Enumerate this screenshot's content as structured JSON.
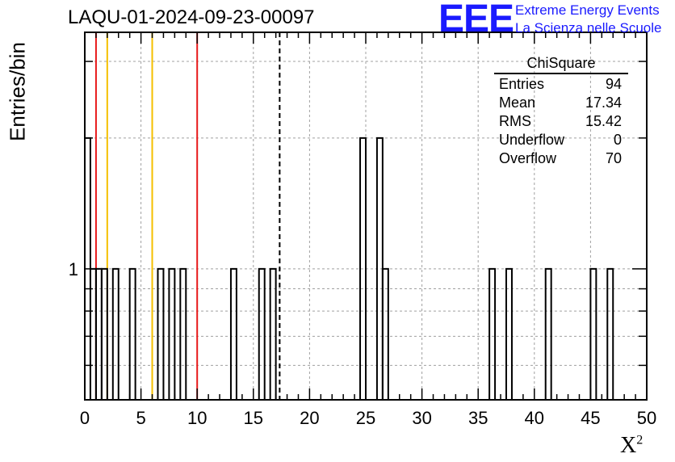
{
  "title": "LAQU-01-2024-09-23-00097",
  "logo": {
    "mark": "EEE",
    "line1": "Extreme Energy Events",
    "line2": "La Scienza nelle Scuole",
    "color": "#1a1aff"
  },
  "stats_box": {
    "title": "ChiSquare",
    "rows": [
      {
        "label": "Entries",
        "value": "94"
      },
      {
        "label": "Mean",
        "value": "17.34"
      },
      {
        "label": "RMS",
        "value": "15.42"
      },
      {
        "label": "Underflow",
        "value": "0"
      },
      {
        "label": "Overflow",
        "value": "70"
      }
    ]
  },
  "chart_data": {
    "type": "bar",
    "style": "step-histogram",
    "xlabel": "X",
    "xlabel_sup": "2",
    "ylabel": "Entries/bin",
    "xlim": [
      0,
      50
    ],
    "ylim": [
      0.5,
      3.5
    ],
    "y_scale": "log",
    "x_ticks": [
      0,
      5,
      10,
      15,
      20,
      25,
      30,
      35,
      40,
      45,
      50
    ],
    "y_tick_labels": [
      {
        "value": 1,
        "label": "1"
      }
    ],
    "grid": true,
    "bin_width": 0.5,
    "bins": [
      {
        "x": 0.0,
        "y": 2
      },
      {
        "x": 0.5,
        "y": 1
      },
      {
        "x": 1.0,
        "y": 1
      },
      {
        "x": 1.5,
        "y": 1
      },
      {
        "x": 2.5,
        "y": 1
      },
      {
        "x": 4.0,
        "y": 1
      },
      {
        "x": 6.5,
        "y": 1
      },
      {
        "x": 7.5,
        "y": 1
      },
      {
        "x": 8.5,
        "y": 1
      },
      {
        "x": 13.0,
        "y": 1
      },
      {
        "x": 15.5,
        "y": 1
      },
      {
        "x": 16.5,
        "y": 1
      },
      {
        "x": 24.5,
        "y": 2
      },
      {
        "x": 26.0,
        "y": 2
      },
      {
        "x": 26.5,
        "y": 1
      },
      {
        "x": 36.0,
        "y": 1
      },
      {
        "x": 37.5,
        "y": 1
      },
      {
        "x": 41.0,
        "y": 1
      },
      {
        "x": 45.0,
        "y": 1
      },
      {
        "x": 46.5,
        "y": 1
      }
    ],
    "reference_lines": [
      {
        "x": 1.0,
        "color": "#e8191b",
        "style": "solid"
      },
      {
        "x": 2.0,
        "color": "#f4c000",
        "style": "solid"
      },
      {
        "x": 6.0,
        "color": "#f4c000",
        "style": "solid"
      },
      {
        "x": 10.0,
        "color": "#e8191b",
        "style": "solid"
      },
      {
        "x": 17.34,
        "color": "#000000",
        "style": "dashed"
      }
    ]
  }
}
